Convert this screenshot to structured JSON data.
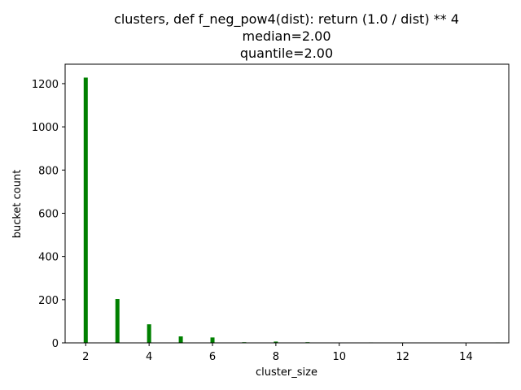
{
  "chart_data": {
    "type": "bar",
    "title_lines": [
      "clusters, def f_neg_pow4(dist): return (1.0 / dist) ** 4",
      "median=2.00",
      "quantile=2.00"
    ],
    "xlabel": "cluster_size",
    "ylabel": "bucket count",
    "x_ticks": [
      2,
      4,
      6,
      8,
      10,
      12,
      14
    ],
    "y_ticks": [
      0,
      200,
      400,
      600,
      800,
      1000,
      1200
    ],
    "xlim": [
      1.35,
      15.35
    ],
    "ylim": [
      0,
      1290
    ],
    "bar_color": "#008000",
    "grid": false,
    "x": [
      2,
      3,
      4,
      5,
      6,
      7,
      8,
      9,
      11,
      12,
      15
    ],
    "values": [
      1228,
      203,
      86,
      30,
      25,
      3,
      6,
      3,
      2,
      2,
      2
    ]
  }
}
